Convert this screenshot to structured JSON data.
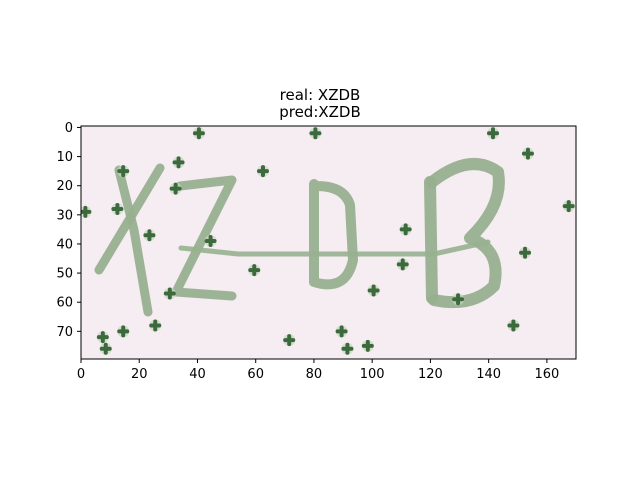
{
  "figure": {
    "title_line1": "real: XZDB",
    "title_line2": "pred:XZDB"
  },
  "image": {
    "background_color": "#f5edf1",
    "glyph_color": "#98b08f",
    "noise_color": "#3d6a3d",
    "noise_points": [
      [
        40,
        2
      ],
      [
        80,
        2
      ],
      [
        141,
        2
      ],
      [
        153,
        9
      ],
      [
        33,
        12
      ],
      [
        14,
        15
      ],
      [
        62,
        15
      ],
      [
        32,
        21
      ],
      [
        1,
        29
      ],
      [
        12,
        28
      ],
      [
        167,
        27
      ],
      [
        111,
        35
      ],
      [
        23,
        37
      ],
      [
        44,
        39
      ],
      [
        152,
        43
      ],
      [
        110,
        47
      ],
      [
        59,
        49
      ],
      [
        100,
        56
      ],
      [
        30,
        57
      ],
      [
        129,
        59
      ],
      [
        25,
        68
      ],
      [
        148,
        68
      ],
      [
        14,
        70
      ],
      [
        89,
        70
      ],
      [
        7,
        72
      ],
      [
        71,
        73
      ],
      [
        98,
        75
      ],
      [
        8,
        76
      ],
      [
        91,
        76
      ]
    ]
  },
  "axes": {
    "x_ticks": [
      "0",
      "20",
      "40",
      "60",
      "80",
      "100",
      "120",
      "140",
      "160"
    ],
    "y_ticks": [
      "0",
      "10",
      "20",
      "30",
      "40",
      "50",
      "60",
      "70"
    ],
    "xlim": [
      0,
      170
    ],
    "ylim": [
      80,
      0
    ]
  }
}
